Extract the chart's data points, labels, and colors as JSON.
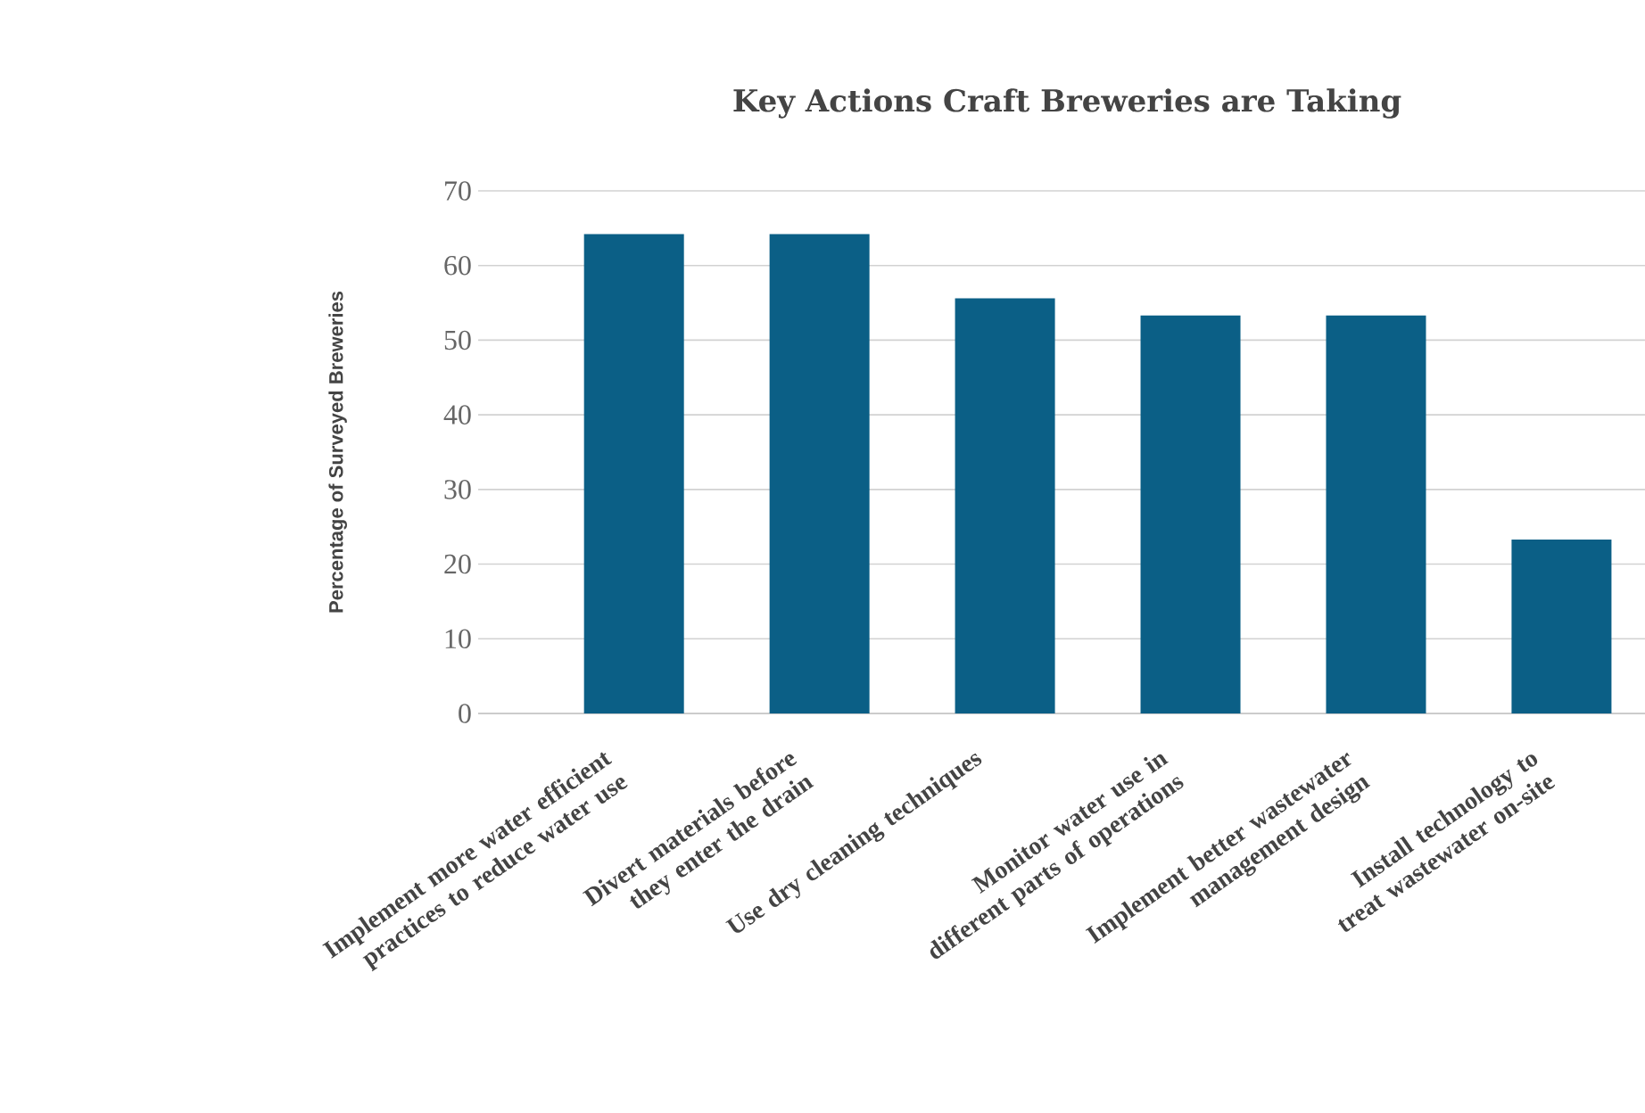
{
  "chart_data": {
    "type": "bar",
    "title": "Key Actions Craft Breweries are Taking",
    "ylabel": "Percentage of Surveyed Breweries",
    "categories": [
      "Implement more water efficient practices to reduce water use",
      "Divert materials before they enter the drain",
      "Use dry cleaning techniques",
      "Monitor water use in different parts of operations",
      "Implement better wastewater management design",
      "Install technology to treat wastewater on-site"
    ],
    "values": [
      64.2,
      64.2,
      55.6,
      53.3,
      53.3,
      23.3
    ],
    "color": "#0b5f86",
    "ylim": [
      0,
      70
    ],
    "yticks": [
      0,
      10,
      20,
      30,
      40,
      50,
      60,
      70
    ],
    "grid": "y"
  }
}
